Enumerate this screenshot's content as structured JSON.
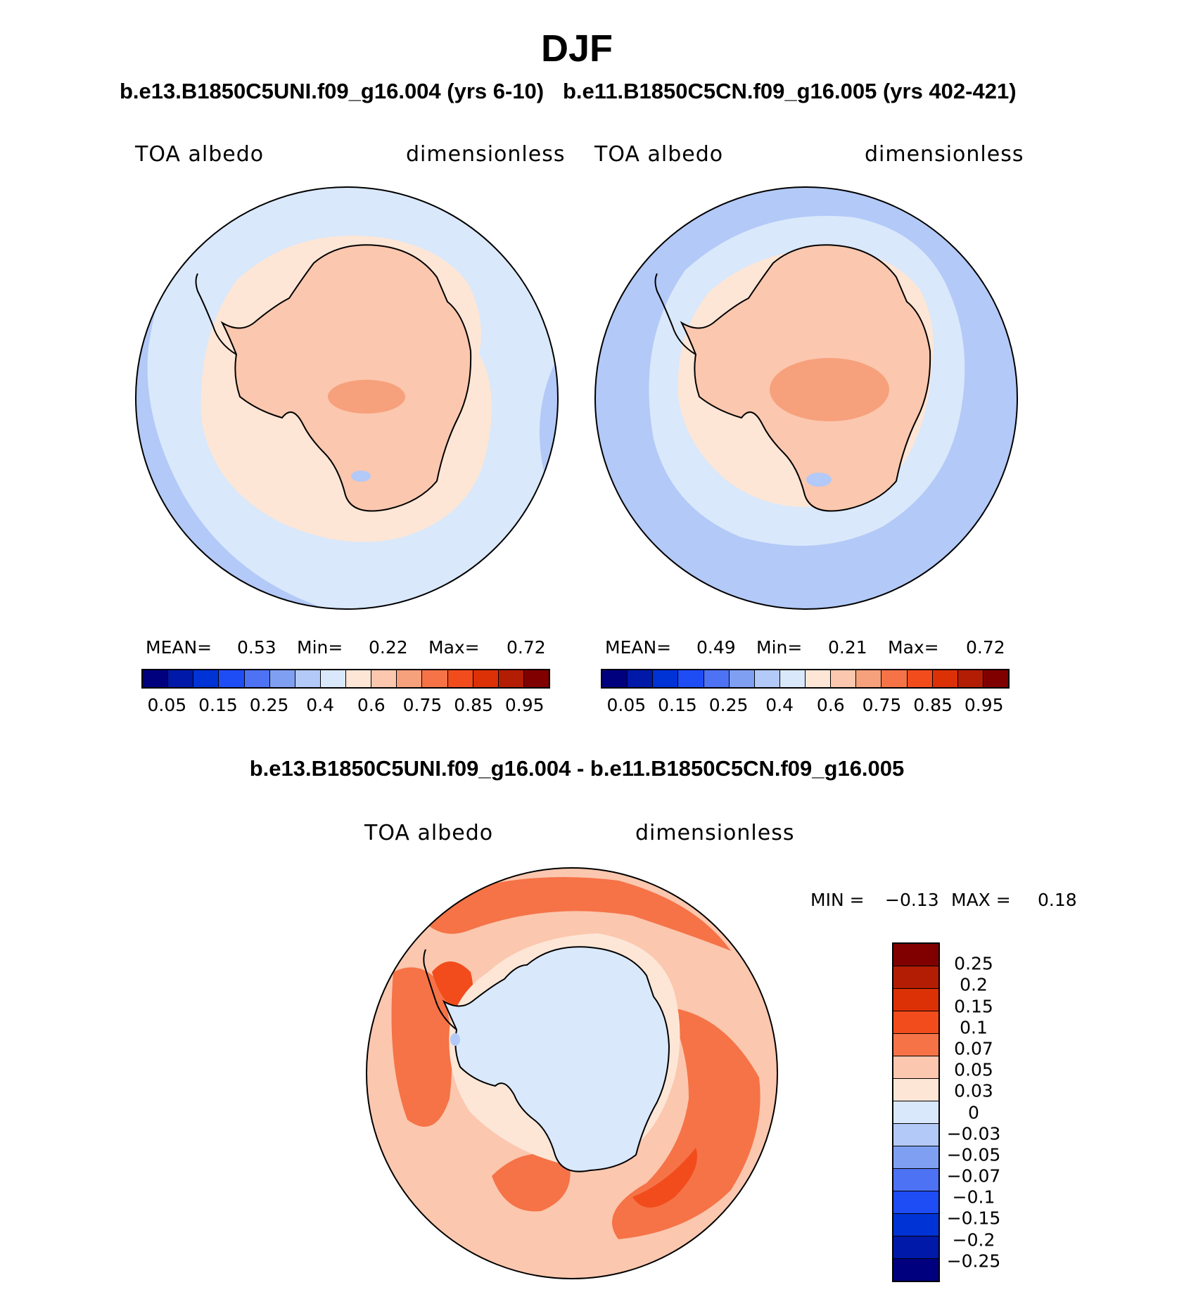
{
  "title": "DJF",
  "panel_left": {
    "case_title": "b.e13.B1850C5UNI.f09_g16.004 (yrs 6-10)",
    "variable": "TOA albedo",
    "units": "dimensionless",
    "mean_label": "MEAN=",
    "mean_value": "0.53",
    "min_label": "Min=",
    "min_value": "0.22",
    "max_label": "Max=",
    "max_value": "0.72"
  },
  "panel_right": {
    "case_title": "b.e11.B1850C5CN.f09_g16.005 (yrs 402-421)",
    "variable": "TOA albedo",
    "units": "dimensionless",
    "mean_label": "MEAN=",
    "mean_value": "0.49",
    "min_label": "Min=",
    "min_value": "0.21",
    "max_label": "Max=",
    "max_value": "0.72"
  },
  "panel_diff": {
    "case_title": "b.e13.B1850C5UNI.f09_g16.004 - b.e11.B1850C5CN.f09_g16.005",
    "variable": "TOA albedo",
    "units": "dimensionless",
    "min_label": "MIN =",
    "min_value": "−0.13",
    "max_label": "MAX =",
    "max_value": "0.18"
  },
  "abs_colorbar": {
    "colors": [
      "#00007f",
      "#0019a8",
      "#0033d6",
      "#1e4cf5",
      "#4d72f3",
      "#7fa0f2",
      "#b3c9f7",
      "#d9e8fb",
      "#fde6d6",
      "#fbc7ae",
      "#f7a07c",
      "#f57347",
      "#f24c1c",
      "#dc3106",
      "#b31d04",
      "#800000"
    ],
    "tick_labels": [
      "0.05",
      "0.15",
      "0.25",
      "0.4",
      "0.6",
      "0.75",
      "0.85",
      "0.95"
    ]
  },
  "diff_colorbar": {
    "colors": [
      "#800000",
      "#b31d04",
      "#dc3106",
      "#f24c1c",
      "#f57347",
      "#fbc7ae",
      "#fde6d6",
      "#d9e8fb",
      "#b3c9f7",
      "#7fa0f2",
      "#4d72f3",
      "#1e4cf5",
      "#0033d6",
      "#0019a8",
      "#00007f"
    ],
    "tick_labels": [
      "0.25",
      "0.2",
      "0.15",
      "0.1",
      "0.07",
      "0.05",
      "0.03",
      "0",
      "−0.03",
      "−0.05",
      "−0.07",
      "−0.1",
      "−0.15",
      "−0.2",
      "−0.25"
    ]
  },
  "map_colors": {
    "ocean_outer_left": "#d9e8fb",
    "ocean_outer_right": "#b3c9f7",
    "ring_light": "#d9e8fb",
    "ring_peach": "#fde6d6",
    "continent": "#fbc7ae",
    "interior": "#f7a07c",
    "blue_patch": "#b3c9f7",
    "diff_bg": "#fbc7ae",
    "diff_orange": "#f57347",
    "diff_red": "#f24c1c",
    "diff_peach": "#fde6d6",
    "diff_continent": "#d9e8fb",
    "coast": "#000000"
  }
}
